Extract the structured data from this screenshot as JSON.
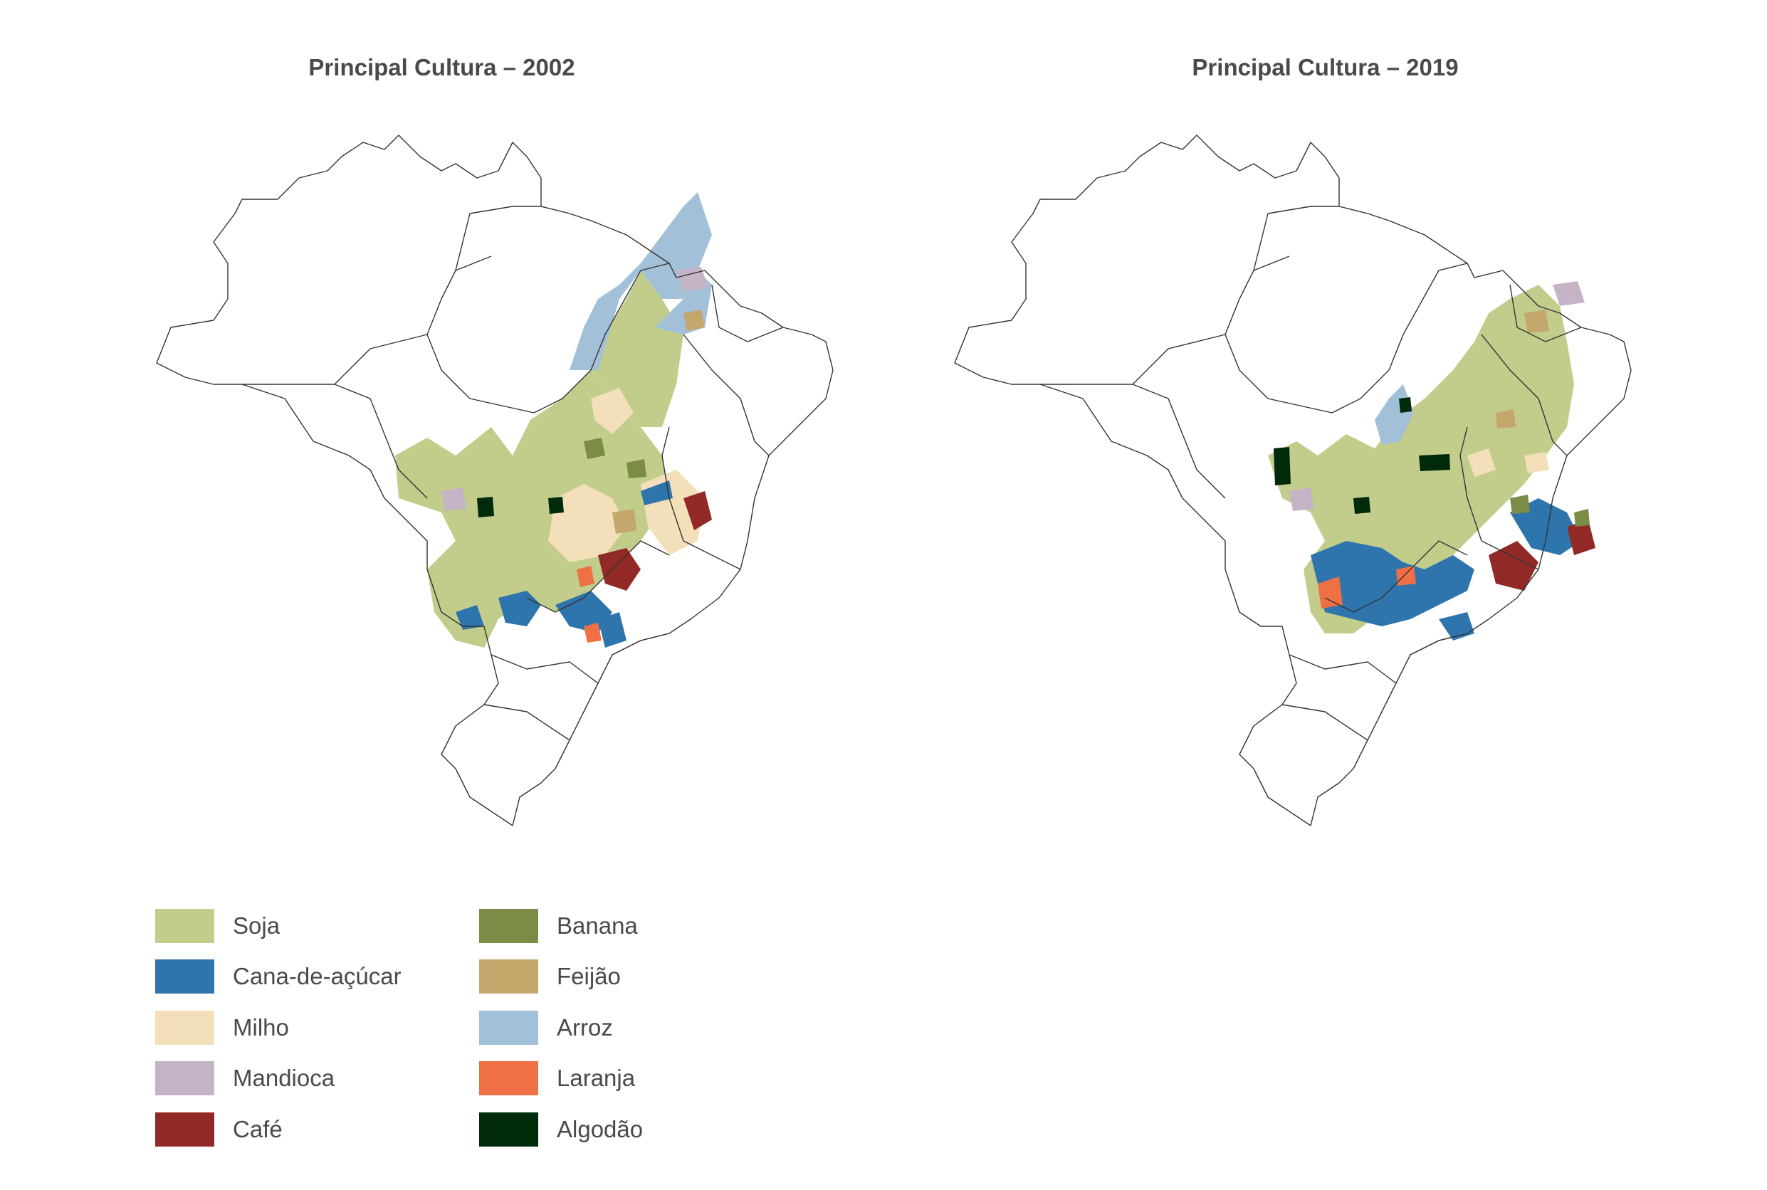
{
  "maps": [
    {
      "title": "Principal Cultura – 2002"
    },
    {
      "title": "Principal Cultura – 2019"
    }
  ],
  "legend": {
    "items": [
      {
        "label": "Soja",
        "color": "#c2cd8c"
      },
      {
        "label": "Cana-de-açúcar",
        "color": "#2f75ad"
      },
      {
        "label": "Milho",
        "color": "#f3dfb9"
      },
      {
        "label": "Mandioca",
        "color": "#c5b4c5"
      },
      {
        "label": "Café",
        "color": "#912a27"
      },
      {
        "label": "Banana",
        "color": "#7a8c45"
      },
      {
        "label": "Feijão",
        "color": "#c3a76b"
      },
      {
        "label": "Arroz",
        "color": "#a2c0d8"
      },
      {
        "label": "Laranja",
        "color": "#ee7044"
      },
      {
        "label": "Algodão",
        "color": "#002a0a"
      }
    ]
  },
  "colors": {
    "border": "#333333",
    "background": "#ffffff"
  }
}
